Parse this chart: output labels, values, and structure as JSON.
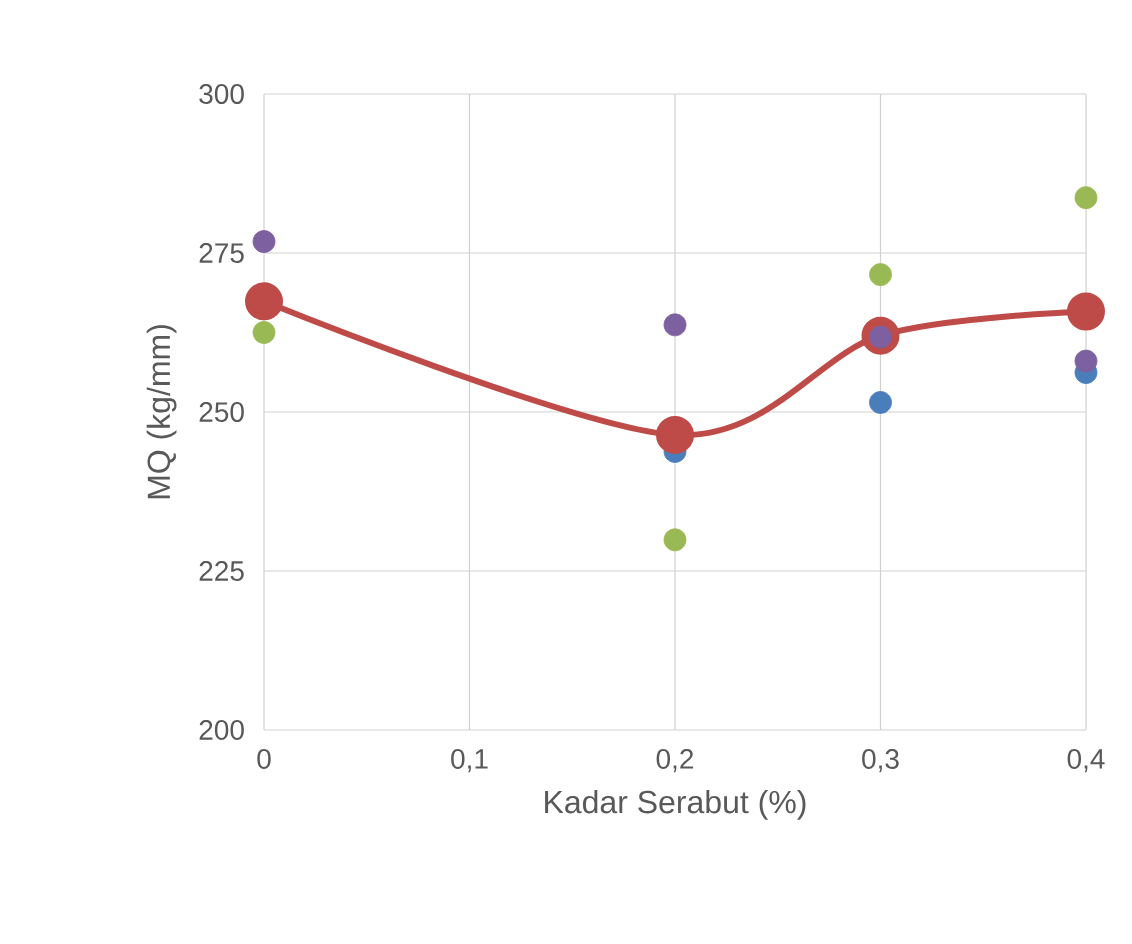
{
  "chart_data": {
    "type": "scatter",
    "xlabel": "Kadar Serabut (%)",
    "ylabel": "MQ (kg/mm)",
    "x": [
      0,
      0.2,
      0.3,
      0.4
    ],
    "series": [
      {
        "color": "#4a7ebb",
        "values": [
          null,
          243.8,
          251.5,
          256.2
        ]
      },
      {
        "type": "line",
        "color": "#be4b48",
        "values": [
          267.4,
          246.4,
          262,
          265.8
        ]
      },
      {
        "color": "#98b954",
        "values": [
          262.5,
          229.9,
          271.6,
          283.7
        ]
      },
      {
        "color": "#7d60a0",
        "values": [
          276.8,
          263.7,
          261.8,
          258
        ]
      }
    ],
    "xlim": [
      0,
      0.4
    ],
    "ylim": [
      200,
      300
    ],
    "xticks": [
      0,
      {
        "value": 0.1,
        "label": "0,1"
      },
      {
        "value": 0.2,
        "label": "0,2"
      },
      {
        "value": 0.3,
        "label": "0,3"
      },
      {
        "value": 0.4,
        "label": "0,4"
      }
    ],
    "yticks": [
      200,
      225,
      250,
      275,
      300
    ],
    "grid": true,
    "marker": "circle"
  }
}
